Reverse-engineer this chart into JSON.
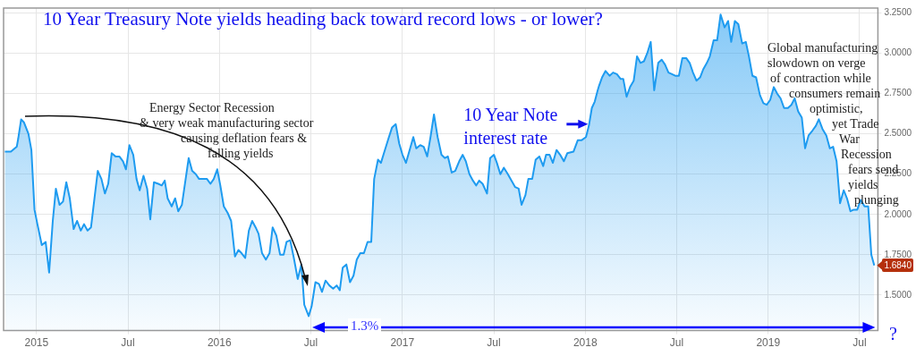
{
  "chart_data": {
    "type": "area",
    "title": "10 Year Treasury Note yields heading back toward record lows - or lower?",
    "x": [
      2014.827,
      2014.86,
      2014.892,
      2014.9,
      2014.916,
      2014.932,
      2014.956,
      2014.972,
      2014.989,
      2015.005,
      2015.029,
      2015.05,
      2015.069,
      2015.089,
      2015.106,
      2015.126,
      2015.145,
      2015.163,
      2015.182,
      2015.203,
      2015.222,
      2015.242,
      2015.26,
      2015.279,
      2015.298,
      2015.319,
      2015.335,
      2015.355,
      2015.374,
      2015.392,
      2015.411,
      2015.432,
      2015.453,
      2015.473,
      2015.489,
      2015.508,
      2015.529,
      2015.547,
      2015.564,
      2015.585,
      2015.605,
      2015.622,
      2015.642,
      2015.666,
      2015.685,
      2015.701,
      2015.717,
      2015.739,
      2015.758,
      2015.775,
      2015.795,
      2015.832,
      2015.851,
      2015.871,
      2015.889,
      2015.908,
      2015.932,
      2015.951,
      2015.969,
      2015.988,
      2016.005,
      2016.024,
      2016.045,
      2016.064,
      2016.085,
      2016.104,
      2016.121,
      2016.141,
      2016.161,
      2016.179,
      2016.198,
      2016.214,
      2016.233,
      2016.254,
      2016.274,
      2016.291,
      2016.311,
      2016.332,
      2016.351,
      2016.367,
      2016.387,
      2016.407,
      2016.428,
      2016.448,
      2016.464,
      2016.488,
      2016.504,
      2016.525,
      2016.544,
      2016.561,
      2016.58,
      2016.601,
      2016.622,
      2016.641,
      2016.658,
      2016.674,
      2016.694,
      2016.714,
      2016.733,
      2016.751,
      2016.77,
      2016.79,
      2016.81,
      2016.83,
      2016.846,
      2016.867,
      2016.883,
      2016.902,
      2016.924,
      2016.944,
      2016.964,
      2016.983,
      2017.001,
      2017.02,
      2017.04,
      2017.06,
      2017.076,
      2017.098,
      2017.117,
      2017.136,
      2017.154,
      2017.173,
      2017.193,
      2017.214,
      2017.233,
      2017.249,
      2017.27,
      2017.289,
      2017.311,
      2017.33,
      2017.347,
      2017.367,
      2017.386,
      2017.404,
      2017.42,
      2017.439,
      2017.463,
      2017.48,
      2017.501,
      2017.517,
      2017.536,
      2017.555,
      2017.577,
      2017.597,
      2017.617,
      2017.636,
      2017.652,
      2017.673,
      2017.689,
      2017.71,
      2017.729,
      2017.749,
      2017.77,
      2017.786,
      2017.805,
      2017.823,
      2017.843,
      2017.863,
      2017.883,
      2017.902,
      2017.936,
      2017.959,
      2017.979,
      2018.004,
      2018.02,
      2018.036,
      2018.052,
      2018.068,
      2018.076,
      2018.092,
      2018.111,
      2018.133,
      2018.152,
      2018.173,
      2018.194,
      2018.208,
      2018.226,
      2018.245,
      2018.265,
      2018.283,
      2018.302,
      2018.321,
      2018.339,
      2018.358,
      2018.377,
      2018.399,
      2018.418,
      2018.436,
      2018.455,
      2018.474,
      2018.492,
      2018.512,
      2018.531,
      2018.552,
      2018.571,
      2018.589,
      2018.608,
      2018.628,
      2018.645,
      2018.665,
      2018.681,
      2018.702,
      2018.721,
      2018.74,
      2018.762,
      2018.781,
      2018.798,
      2018.818,
      2018.837,
      2018.858,
      2018.878,
      2018.895,
      2018.914,
      2018.934,
      2018.955,
      2018.974,
      2018.992,
      2019.011,
      2019.031,
      2019.049,
      2019.068,
      2019.087,
      2019.108,
      2019.127,
      2019.145,
      2019.164,
      2019.184,
      2019.202,
      2019.221,
      2019.242,
      2019.261,
      2019.277,
      2019.297,
      2019.318,
      2019.337,
      2019.355,
      2019.374,
      2019.393,
      2019.413,
      2019.431,
      2019.45,
      2019.468,
      2019.487,
      2019.506,
      2019.527,
      2019.547,
      2019.564,
      2019.58
    ],
    "series": [
      {
        "color": "#1e9bf0",
        "values": [
          2.39,
          2.39,
          2.42,
          2.47,
          2.59,
          2.57,
          2.5,
          2.4,
          2.03,
          1.94,
          1.81,
          1.83,
          1.64,
          1.96,
          2.16,
          2.06,
          2.08,
          2.2,
          2.1,
          1.91,
          1.96,
          1.9,
          1.94,
          1.9,
          1.92,
          2.12,
          2.27,
          2.22,
          2.13,
          2.19,
          2.38,
          2.36,
          2.36,
          2.33,
          2.28,
          2.43,
          2.37,
          2.22,
          2.15,
          2.24,
          2.16,
          1.97,
          2.2,
          2.19,
          2.18,
          2.21,
          2.1,
          2.05,
          2.1,
          2.02,
          2.06,
          2.35,
          2.27,
          2.25,
          2.22,
          2.22,
          2.22,
          2.19,
          2.22,
          2.28,
          2.18,
          2.05,
          2.01,
          1.96,
          1.74,
          1.78,
          1.76,
          1.73,
          1.9,
          1.96,
          1.92,
          1.88,
          1.76,
          1.72,
          1.76,
          1.92,
          1.87,
          1.75,
          1.75,
          1.83,
          1.84,
          1.73,
          1.6,
          1.69,
          1.44,
          1.37,
          1.43,
          1.58,
          1.57,
          1.52,
          1.59,
          1.56,
          1.54,
          1.56,
          1.53,
          1.67,
          1.69,
          1.58,
          1.62,
          1.72,
          1.76,
          1.76,
          1.83,
          1.83,
          2.22,
          2.34,
          2.32,
          2.39,
          2.47,
          2.54,
          2.56,
          2.44,
          2.37,
          2.32,
          2.4,
          2.48,
          2.41,
          2.43,
          2.42,
          2.36,
          2.48,
          2.62,
          2.48,
          2.37,
          2.35,
          2.36,
          2.26,
          2.27,
          2.33,
          2.37,
          2.33,
          2.25,
          2.21,
          2.18,
          2.21,
          2.19,
          2.13,
          2.35,
          2.37,
          2.32,
          2.25,
          2.29,
          2.25,
          2.21,
          2.17,
          2.16,
          2.06,
          2.12,
          2.22,
          2.22,
          2.34,
          2.36,
          2.3,
          2.37,
          2.37,
          2.32,
          2.4,
          2.37,
          2.33,
          2.38,
          2.39,
          2.46,
          2.46,
          2.48,
          2.55,
          2.66,
          2.7,
          2.77,
          2.8,
          2.85,
          2.89,
          2.86,
          2.88,
          2.87,
          2.84,
          2.84,
          2.73,
          2.79,
          2.83,
          2.98,
          2.94,
          2.95,
          3.0,
          3.07,
          2.77,
          2.94,
          2.96,
          2.93,
          2.88,
          2.87,
          2.86,
          2.86,
          2.97,
          2.97,
          2.94,
          2.88,
          2.83,
          2.85,
          2.9,
          2.94,
          2.98,
          3.08,
          3.08,
          3.24,
          3.16,
          3.2,
          3.07,
          3.2,
          3.18,
          3.06,
          3.07,
          2.98,
          2.86,
          2.85,
          2.74,
          2.69,
          2.68,
          2.71,
          2.79,
          2.75,
          2.72,
          2.66,
          2.66,
          2.68,
          2.72,
          2.64,
          2.6,
          2.41,
          2.49,
          2.52,
          2.55,
          2.59,
          2.53,
          2.49,
          2.41,
          2.42,
          2.33,
          2.07,
          2.15,
          2.1,
          2.02,
          2.03,
          2.03,
          2.09,
          2.05,
          2.05,
          1.75,
          1.684
        ]
      }
    ],
    "xlim": [
      2014.82,
      2019.6
    ],
    "xticks": [
      {
        "value": 2015,
        "label": "2015"
      },
      {
        "value": 2015.5,
        "label": "Jul"
      },
      {
        "value": 2016,
        "label": "2016"
      },
      {
        "value": 2016.5,
        "label": "Jul"
      },
      {
        "value": 2017,
        "label": "2017"
      },
      {
        "value": 2017.5,
        "label": "Jul"
      },
      {
        "value": 2018,
        "label": "2018"
      },
      {
        "value": 2018.5,
        "label": "Jul"
      },
      {
        "value": 2019,
        "label": "2019"
      },
      {
        "value": 2019.5,
        "label": "Jul"
      }
    ],
    "ylim": [
      1.28,
      3.28
    ],
    "yticks": [
      {
        "value": 1.5,
        "label": "1.5000"
      },
      {
        "value": 1.75,
        "label": "1.7500"
      },
      {
        "value": 2,
        "label": "2.0000"
      },
      {
        "value": 2.25,
        "label": "2.2500"
      },
      {
        "value": 2.5,
        "label": "2.5000"
      },
      {
        "value": 2.75,
        "label": "2.7500"
      },
      {
        "value": 3,
        "label": "3.0000"
      },
      {
        "value": 3.25,
        "label": "3.2500"
      }
    ],
    "grid": true,
    "legend": false,
    "marker": "none",
    "ref_lines": [
      {
        "axis": "y",
        "value": 1.3,
        "label": "1.3%",
        "color": "#0000ff"
      }
    ],
    "annotations": [
      "Energy Sector Recession\n& very weak manufacturing sector\ncausing deflation fears &\nfalling yields",
      {
        "text": "10 Year Note\ninterest rate",
        "x": 2018.02,
        "y": 2.56
      },
      "Global manufacturing\nslowdown on verge\nof contraction while\nconsumers remain\noptimistic,\nyet Trade\nWar\nRecession\nfears send\nyields\nplunging",
      "?",
      {
        "text": "1.6840",
        "x": 2019.58,
        "y": 1.684
      }
    ]
  }
}
